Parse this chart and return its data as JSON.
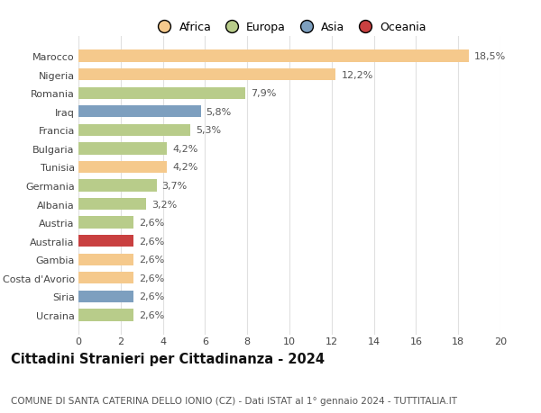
{
  "countries": [
    "Marocco",
    "Nigeria",
    "Romania",
    "Iraq",
    "Francia",
    "Bulgaria",
    "Tunisia",
    "Germania",
    "Albania",
    "Austria",
    "Australia",
    "Gambia",
    "Costa d'Avorio",
    "Siria",
    "Ucraina"
  ],
  "values": [
    18.5,
    12.2,
    7.9,
    5.8,
    5.3,
    4.2,
    4.2,
    3.7,
    3.2,
    2.6,
    2.6,
    2.6,
    2.6,
    2.6,
    2.6
  ],
  "labels": [
    "18,5%",
    "12,2%",
    "7,9%",
    "5,8%",
    "5,3%",
    "4,2%",
    "4,2%",
    "3,7%",
    "3,2%",
    "2,6%",
    "2,6%",
    "2,6%",
    "2,6%",
    "2,6%",
    "2,6%"
  ],
  "colors": [
    "#F5C98C",
    "#F5C98C",
    "#B8CC8A",
    "#7D9FBF",
    "#B8CC8A",
    "#B8CC8A",
    "#F5C98C",
    "#B8CC8A",
    "#B8CC8A",
    "#B8CC8A",
    "#C94040",
    "#F5C98C",
    "#F5C98C",
    "#7D9FBF",
    "#B8CC8A"
  ],
  "legend": {
    "Africa": "#F5C98C",
    "Europa": "#B8CC8A",
    "Asia": "#7D9FBF",
    "Oceania": "#C94040"
  },
  "title": "Cittadini Stranieri per Cittadinanza - 2024",
  "subtitle": "COMUNE DI SANTA CATERINA DELLO IONIO (CZ) - Dati ISTAT al 1° gennaio 2024 - TUTTITALIA.IT",
  "xlim": [
    0,
    20
  ],
  "xticks": [
    0,
    2,
    4,
    6,
    8,
    10,
    12,
    14,
    16,
    18,
    20
  ],
  "background_color": "#ffffff",
  "grid_color": "#e0e0e0",
  "title_fontsize": 10.5,
  "subtitle_fontsize": 7.5,
  "label_fontsize": 8,
  "tick_fontsize": 8,
  "legend_fontsize": 9
}
